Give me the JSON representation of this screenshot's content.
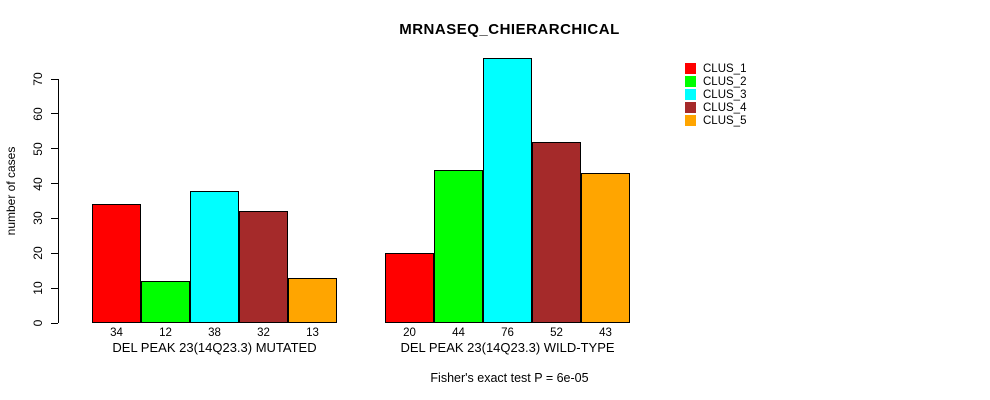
{
  "chart_data": {
    "type": "bar",
    "title": "MRNASEQ_CHIERARCHICAL",
    "ylabel": "number of cases",
    "ylim": [
      0,
      70
    ],
    "yticks": [
      0,
      10,
      20,
      30,
      40,
      50,
      60,
      70
    ],
    "grid": false,
    "legend_position": "right",
    "categories": [
      "DEL PEAK 23(14Q23.3) MUTATED",
      "DEL PEAK 23(14Q23.3) WILD-TYPE"
    ],
    "series": [
      {
        "name": "CLUS_1",
        "color": "#FF0000",
        "values": [
          34,
          20
        ]
      },
      {
        "name": "CLUS_2",
        "color": "#00FF00",
        "values": [
          12,
          44
        ]
      },
      {
        "name": "CLUS_3",
        "color": "#00FFFF",
        "values": [
          38,
          76
        ]
      },
      {
        "name": "CLUS_4",
        "color": "#A52A2A",
        "values": [
          32,
          52
        ]
      },
      {
        "name": "CLUS_5",
        "color": "#FFA500",
        "values": [
          13,
          43
        ]
      }
    ],
    "groups": [
      {
        "label": "DEL PEAK 23(14Q23.3) MUTATED",
        "values": [
          34,
          12,
          38,
          32,
          13
        ]
      },
      {
        "label": "DEL PEAK 23(14Q23.3) WILD-TYPE",
        "values": [
          20,
          44,
          76,
          52,
          43
        ]
      }
    ],
    "bar_value_labels": [
      [
        34,
        12,
        38,
        32,
        13
      ],
      [
        20,
        44,
        76,
        52,
        43
      ]
    ],
    "footnote": "Fisher's exact test P = 6e-05"
  }
}
